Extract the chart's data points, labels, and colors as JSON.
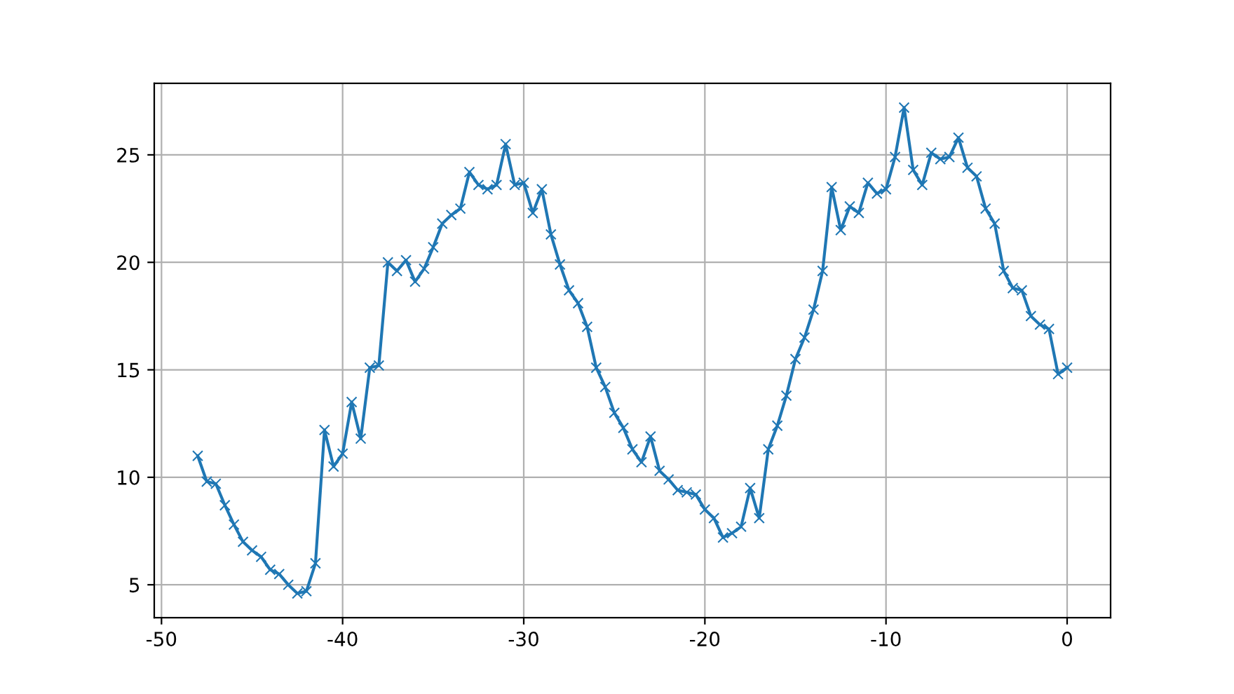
{
  "chart_data": {
    "type": "line",
    "marker": "cross",
    "grid": true,
    "xlim": [
      -50.4,
      2.4
    ],
    "xticks": [
      -50,
      -40,
      -30,
      -20,
      -10,
      0
    ],
    "ylim": [
      3.47,
      28.33
    ],
    "yticks": [
      5,
      10,
      15,
      20,
      25
    ],
    "series": [
      {
        "color": "#1f77b4",
        "x": [
          -48,
          -47.5,
          -47,
          -46.5,
          -46,
          -45.5,
          -45,
          -44.5,
          -44,
          -43.5,
          -43,
          -42.5,
          -42,
          -41.5,
          -41,
          -40.5,
          -40,
          -39.5,
          -39,
          -38.5,
          -38,
          -37.5,
          -37,
          -36.5,
          -36,
          -35.5,
          -35,
          -34.5,
          -34,
          -33.5,
          -33,
          -32.5,
          -32,
          -31.5,
          -31,
          -30.5,
          -30,
          -29.5,
          -29,
          -28.5,
          -28,
          -27.5,
          -27,
          -26.5,
          -26,
          -25.5,
          -25,
          -24.5,
          -24,
          -23.5,
          -23,
          -22.5,
          -22,
          -21.5,
          -21,
          -20.5,
          -20,
          -19.5,
          -19,
          -18.5,
          -18,
          -17.5,
          -17,
          -16.5,
          -16,
          -15.5,
          -15,
          -14.5,
          -14,
          -13.5,
          -13,
          -12.5,
          -12,
          -11.5,
          -11,
          -10.5,
          -10,
          -9.5,
          -9,
          -8.5,
          -8,
          -7.5,
          -7,
          -6.5,
          -6,
          -5.5,
          -5,
          -4.5,
          -4,
          -3.5,
          -3,
          -2.5,
          -2,
          -1.5,
          -1,
          -0.5,
          0
        ],
        "values": [
          11.0,
          9.8,
          9.7,
          8.7,
          7.8,
          7.0,
          6.6,
          6.3,
          5.7,
          5.5,
          5.0,
          4.6,
          4.7,
          6.0,
          12.2,
          10.5,
          11.1,
          13.5,
          11.8,
          15.1,
          15.2,
          20.0,
          19.6,
          20.1,
          19.1,
          19.7,
          20.7,
          21.8,
          22.2,
          22.5,
          24.2,
          23.6,
          23.4,
          23.6,
          25.5,
          23.6,
          23.7,
          22.3,
          23.4,
          21.3,
          19.9,
          18.7,
          18.1,
          17.0,
          15.1,
          14.2,
          13.0,
          12.3,
          11.3,
          10.7,
          11.9,
          10.3,
          9.9,
          9.4,
          9.3,
          9.2,
          8.5,
          8.1,
          7.2,
          7.4,
          7.7,
          9.5,
          8.1,
          11.3,
          12.4,
          13.8,
          15.5,
          16.5,
          17.8,
          19.6,
          23.5,
          21.5,
          22.6,
          22.3,
          23.7,
          23.2,
          23.4,
          24.9,
          27.2,
          24.3,
          23.6,
          25.1,
          24.8,
          24.9,
          25.8,
          24.4,
          24.0,
          22.5,
          21.8,
          19.6,
          18.8,
          18.7,
          17.5,
          17.1,
          16.9,
          14.8,
          15.1
        ]
      }
    ]
  }
}
